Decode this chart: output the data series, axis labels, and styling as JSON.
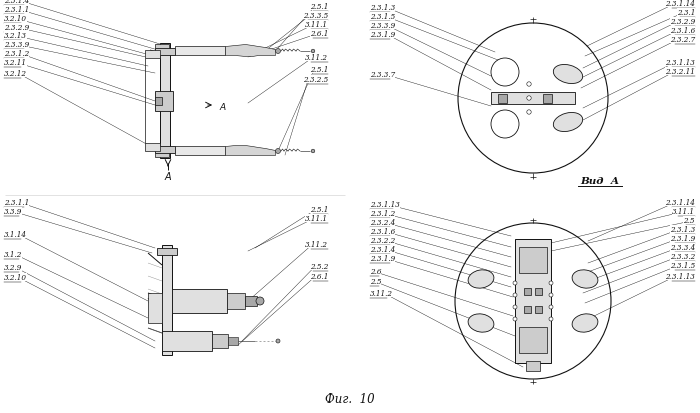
{
  "title": "Фиг.  10",
  "background": "#ffffff",
  "fig_width": 7.0,
  "fig_height": 4.14,
  "black": "#111111",
  "gray1": "#cccccc",
  "gray2": "#e0e0e0",
  "gray3": "#a8a8a8",
  "vid_a": "Вид  А"
}
